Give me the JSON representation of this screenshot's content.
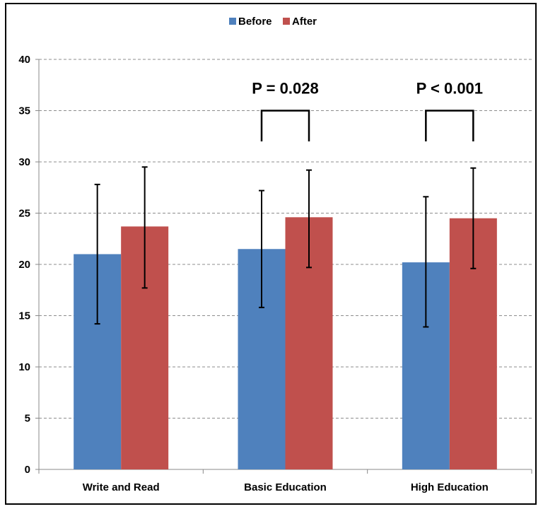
{
  "chart_data": {
    "type": "bar",
    "title": "",
    "xlabel": "",
    "ylabel": "",
    "categories": [
      "Write and Read",
      "Basic Education",
      "High Education"
    ],
    "series": [
      {
        "name": "Before",
        "color": "#4f81bd",
        "values": [
          21.0,
          21.5,
          20.2
        ],
        "error_low": [
          14.2,
          15.8,
          13.9
        ],
        "error_high": [
          27.8,
          27.2,
          26.6
        ]
      },
      {
        "name": "After",
        "color": "#c0504d",
        "values": [
          23.7,
          24.6,
          24.5
        ],
        "error_low": [
          17.7,
          19.7,
          19.6
        ],
        "error_high": [
          29.5,
          29.2,
          29.4
        ]
      }
    ],
    "ylim": [
      0,
      40
    ],
    "yticks": [
      0,
      5,
      10,
      15,
      20,
      25,
      30,
      35,
      40
    ],
    "grid": true,
    "legend_position": "top",
    "annotations": [
      {
        "category_index": 1,
        "text": "P = 0.028",
        "bracket_top": 35,
        "bracket_bottom": 32
      },
      {
        "category_index": 2,
        "text": "P < 0.001",
        "bracket_top": 35,
        "bracket_bottom": 32
      }
    ]
  }
}
